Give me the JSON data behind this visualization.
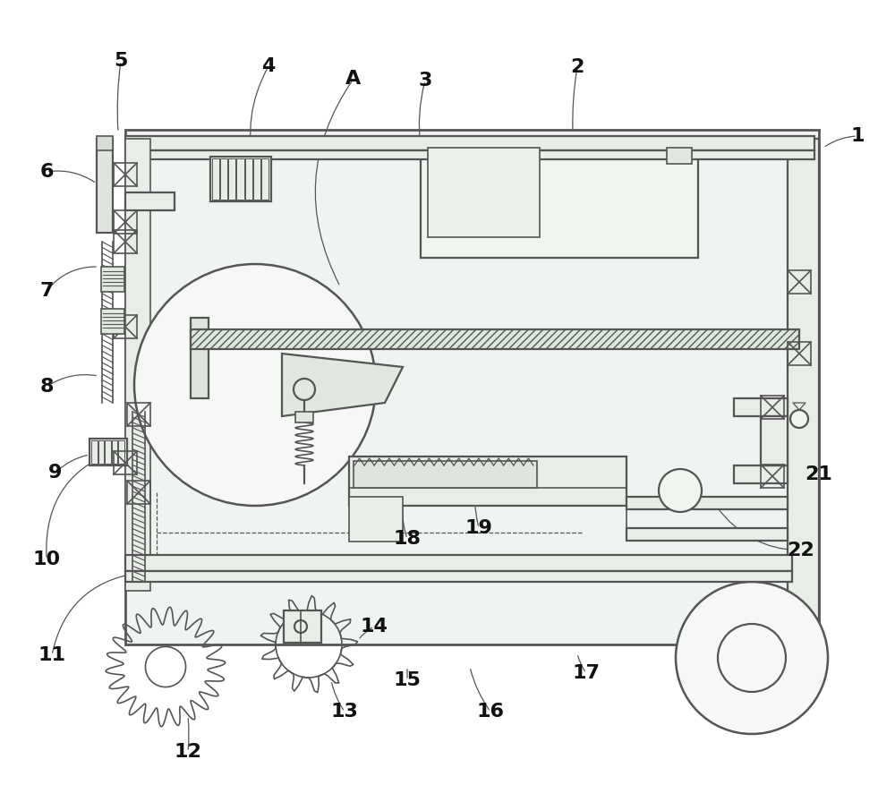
{
  "bg": "#ffffff",
  "lc": "#555555",
  "lc_dark": "#333333",
  "fill_frame": "#f0f4f0",
  "fill_mid": "#e0e6e0",
  "fill_green": "#d8e8d8",
  "hatch_fill": "#dce8dc"
}
